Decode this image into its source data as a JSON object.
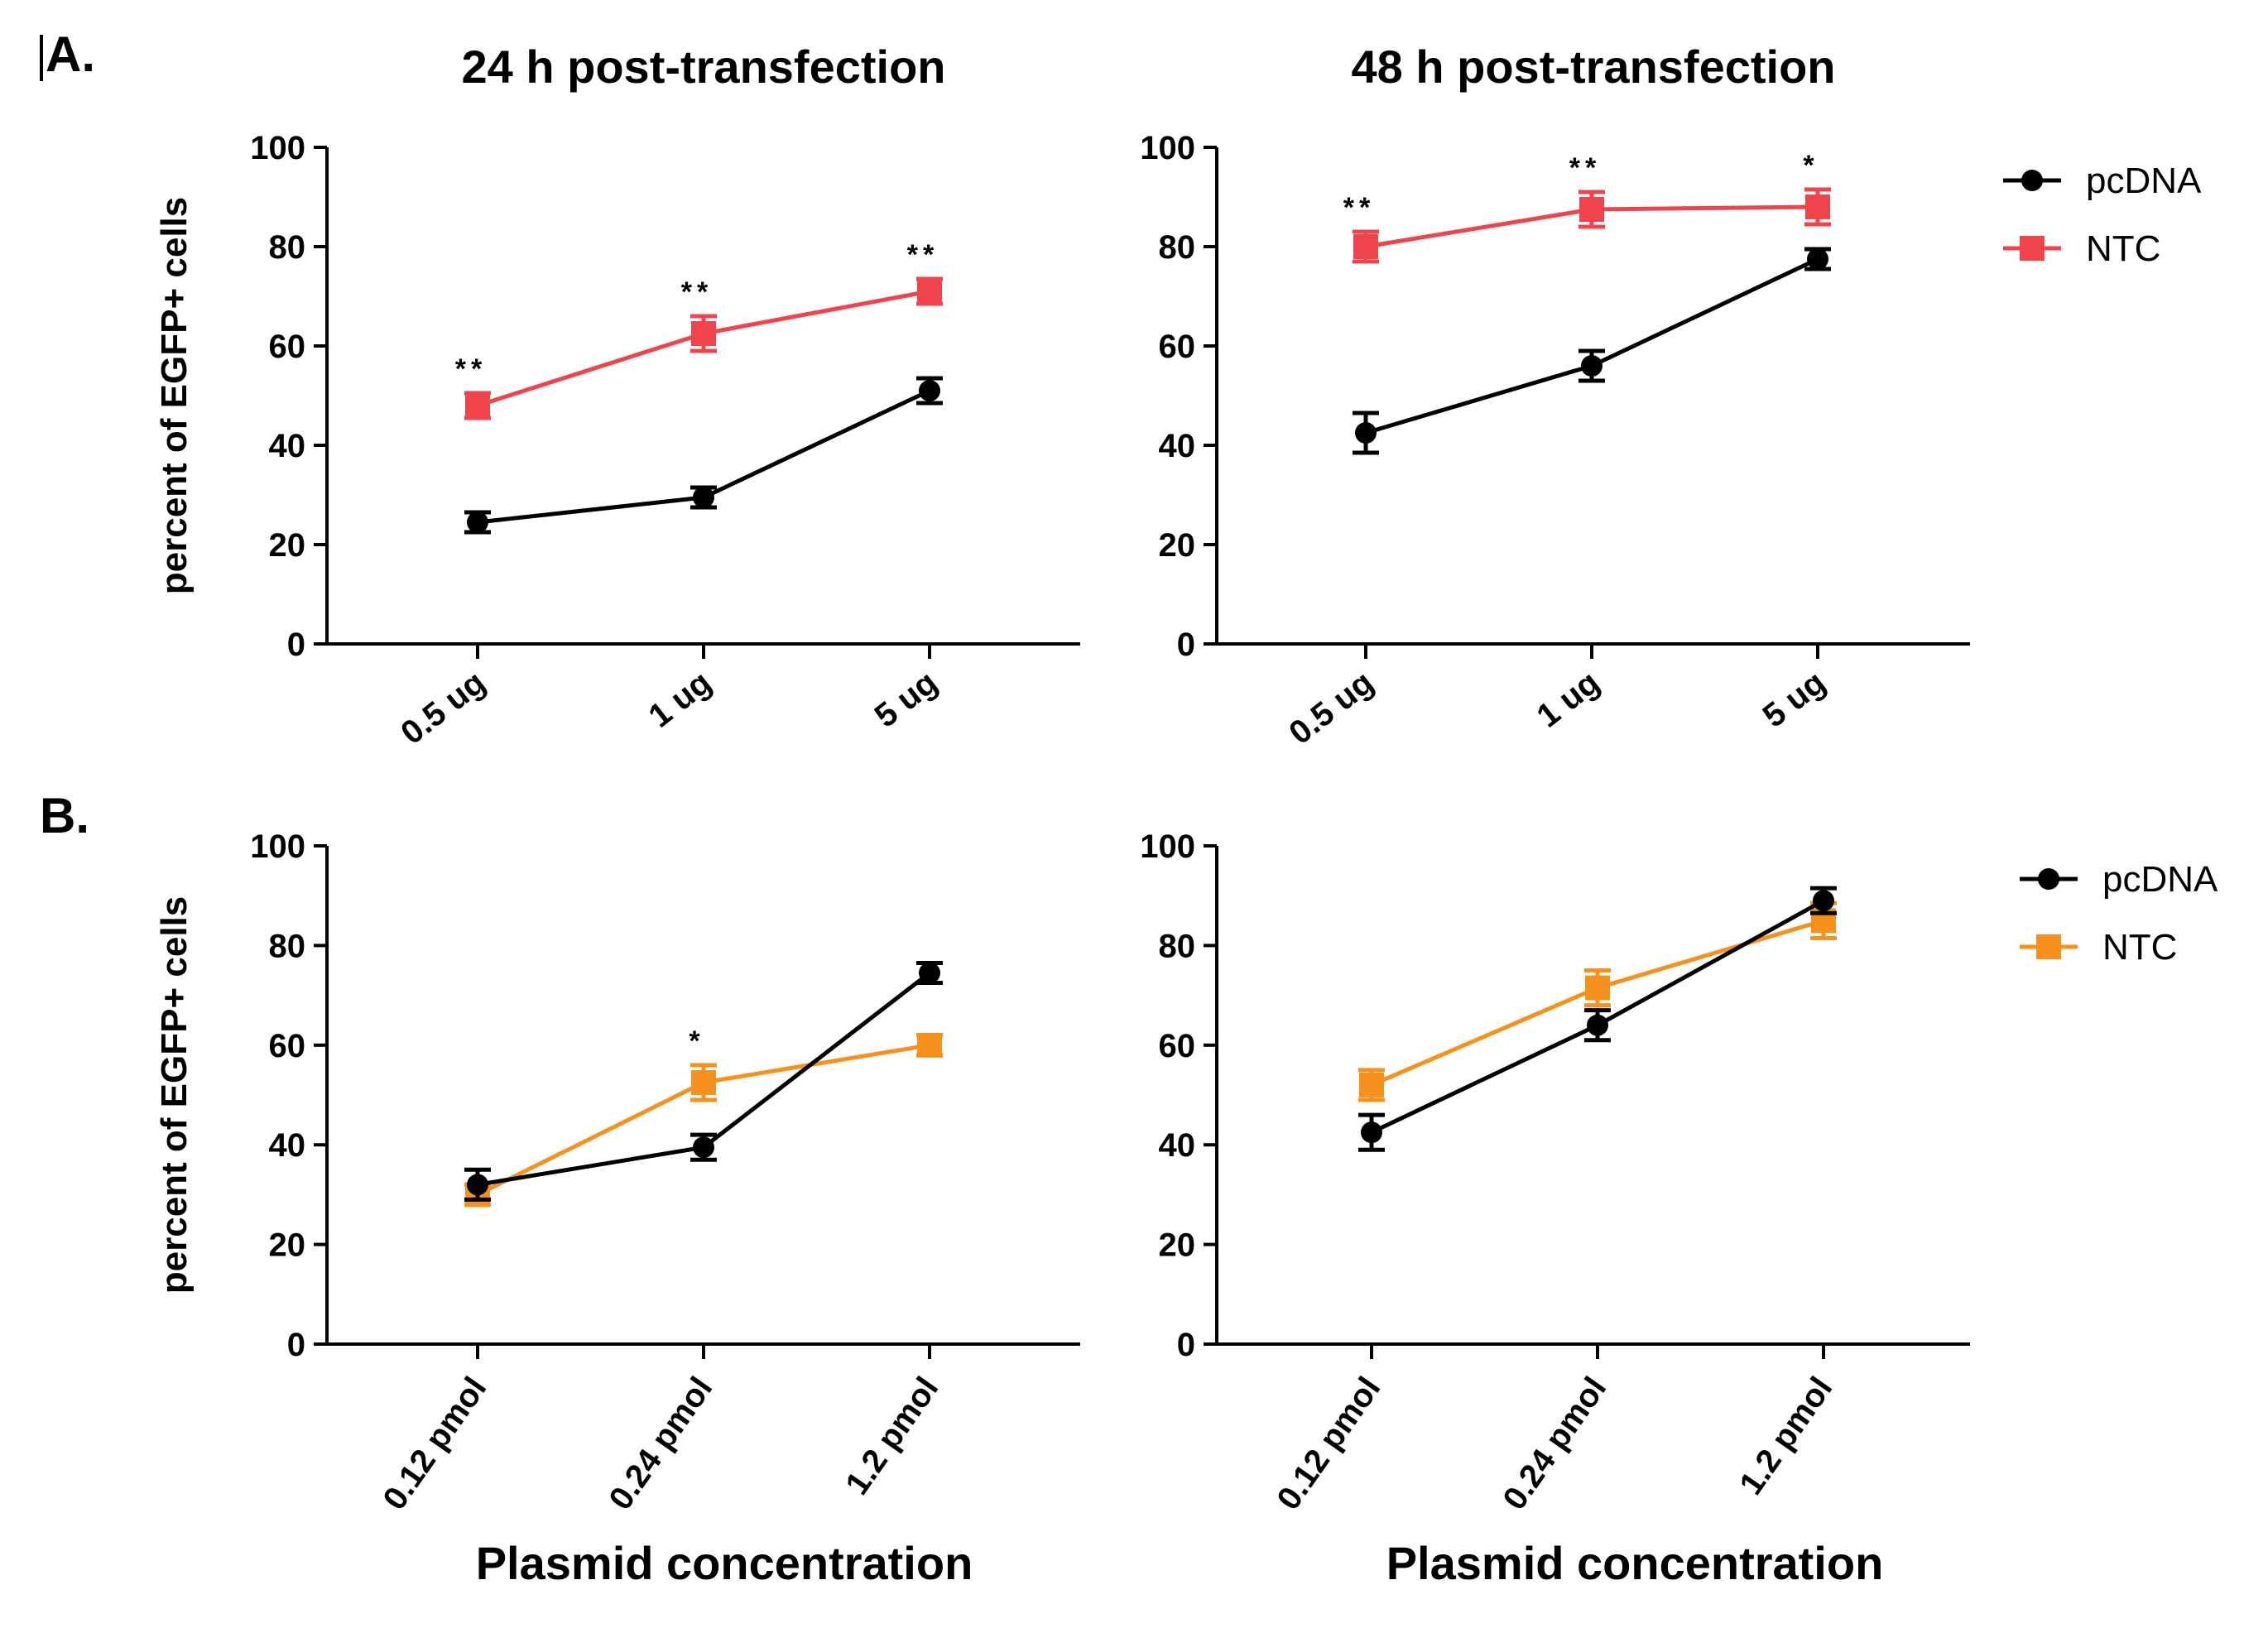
{
  "figure": {
    "panel_labels": [
      "A.",
      "B."
    ],
    "x_title": "Plasmid concentration",
    "colors": {
      "pcDNA": "#000000",
      "NTC_A": "#f0434b",
      "NTC_B": "#f7911d"
    }
  },
  "chart_data": [
    {
      "id": "A-24h",
      "type": "line",
      "title": "24 h post-transfection",
      "ylabel": "percent of EGFP+ cells",
      "xlabel": "",
      "ylim": [
        0,
        100
      ],
      "yticks": [
        0,
        20,
        40,
        60,
        80,
        100
      ],
      "categories": [
        "0.5 ug",
        "1 ug",
        "5 ug"
      ],
      "series": [
        {
          "name": "pcDNA",
          "color": "#000000",
          "marker": "circle",
          "values": [
            24.5,
            29.5,
            51
          ],
          "errors": [
            2,
            2,
            2.5
          ]
        },
        {
          "name": "NTC",
          "color": "#f0434b",
          "marker": "square",
          "values": [
            48,
            62.5,
            71
          ],
          "errors": [
            2.5,
            3.5,
            2.5
          ]
        }
      ],
      "significance": [
        "**",
        "**",
        "**"
      ]
    },
    {
      "id": "A-48h",
      "type": "line",
      "title": "48 h post-transfection",
      "ylabel": "",
      "xlabel": "",
      "ylim": [
        0,
        100
      ],
      "yticks": [
        0,
        20,
        40,
        60,
        80,
        100
      ],
      "categories": [
        "0.5 ug",
        "1 ug",
        "5 ug"
      ],
      "series": [
        {
          "name": "pcDNA",
          "color": "#000000",
          "marker": "circle",
          "values": [
            42.5,
            56,
            77.5
          ],
          "errors": [
            4,
            3,
            2
          ]
        },
        {
          "name": "NTC",
          "color": "#f0434b",
          "marker": "square",
          "values": [
            80,
            87.5,
            88
          ],
          "errors": [
            3,
            3.5,
            3.5
          ]
        }
      ],
      "significance": [
        "**",
        "**",
        "*"
      ],
      "legend": [
        {
          "label": "pcDNA",
          "color": "#000000",
          "marker": "circle"
        },
        {
          "label": "NTC",
          "color": "#f0434b",
          "marker": "square"
        }
      ]
    },
    {
      "id": "B-24h",
      "type": "line",
      "title": "",
      "ylabel": "percent of EGFP+ cells",
      "xlabel": "Plasmid concentration",
      "ylim": [
        0,
        100
      ],
      "yticks": [
        0,
        20,
        40,
        60,
        80,
        100
      ],
      "categories": [
        "0.12 pmol",
        "0.24 pmol",
        "1.2 pmol"
      ],
      "series": [
        {
          "name": "pcDNA",
          "color": "#000000",
          "marker": "circle",
          "values": [
            32,
            39.5,
            74.5
          ],
          "errors": [
            3,
            2.5,
            2
          ]
        },
        {
          "name": "NTC",
          "color": "#f7911d",
          "marker": "square",
          "values": [
            30,
            52.5,
            60
          ],
          "errors": [
            2,
            3.5,
            2
          ]
        }
      ],
      "significance": [
        "",
        "*",
        ""
      ]
    },
    {
      "id": "B-48h",
      "type": "line",
      "title": "",
      "ylabel": "",
      "xlabel": "Plasmid concentration",
      "ylim": [
        0,
        100
      ],
      "yticks": [
        0,
        20,
        40,
        60,
        80,
        100
      ],
      "categories": [
        "0.12 pmol",
        "0.24 pmol",
        "1.2 pmol"
      ],
      "series": [
        {
          "name": "pcDNA",
          "color": "#000000",
          "marker": "circle",
          "values": [
            42.5,
            64,
            89
          ],
          "errors": [
            3.5,
            3,
            2.5
          ]
        },
        {
          "name": "NTC",
          "color": "#f7911d",
          "marker": "square",
          "values": [
            52,
            71.5,
            85
          ],
          "errors": [
            3,
            3.5,
            3.5
          ]
        }
      ],
      "significance": [
        "",
        "",
        ""
      ],
      "legend": [
        {
          "label": "pcDNA",
          "color": "#000000",
          "marker": "circle"
        },
        {
          "label": "NTC",
          "color": "#f7911d",
          "marker": "square"
        }
      ]
    }
  ]
}
